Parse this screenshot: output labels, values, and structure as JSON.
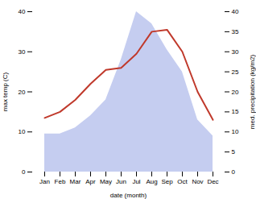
{
  "chart_data": {
    "type": "line",
    "xlabel": "date (month)",
    "ylabel": "max temp (C)",
    "y2label": "med. precipitation (kg/m2)",
    "categories": [
      "Jan",
      "Feb",
      "Mar",
      "Apr",
      "May",
      "Jun",
      "Jul",
      "Aug",
      "Sep",
      "Oct",
      "Nov",
      "Dec"
    ],
    "series": [
      {
        "type": "area",
        "axis": "y2",
        "color": "#c5cdf0",
        "values": [
          9.5,
          9.5,
          11.0,
          14.0,
          18.0,
          28.0,
          40.0,
          37.0,
          30.5,
          25.0,
          13.0,
          9.0
        ]
      },
      {
        "type": "line",
        "color": "#c0392b",
        "values": [
          13.5,
          15.0,
          18.0,
          22.0,
          25.5,
          26.0,
          29.5,
          35.0,
          35.5,
          30.0,
          20.0,
          13.0
        ]
      }
    ],
    "ylim": [
      0,
      40
    ],
    "yticks": [
      0,
      10,
      20,
      30,
      40
    ],
    "y2lim": [
      0,
      40
    ],
    "y2ticks": [
      0,
      5,
      10,
      15,
      20,
      25,
      30,
      35,
      40
    ]
  }
}
